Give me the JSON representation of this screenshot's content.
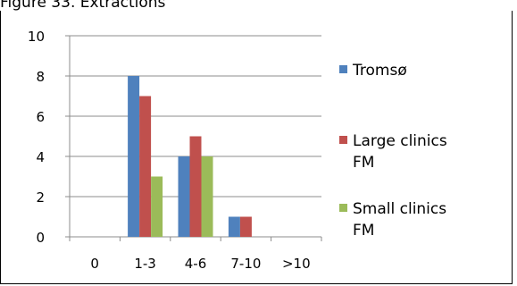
{
  "caption": "Figure 33. Extractions",
  "chart_data": {
    "type": "bar",
    "categories": [
      "0",
      "1-3",
      "4-6",
      "7-10",
      ">10"
    ],
    "series": [
      {
        "name": "Tromsø",
        "values": [
          0,
          8,
          4,
          1,
          0
        ],
        "color": "#4f81bd"
      },
      {
        "name": "Large clinics FM",
        "values": [
          0,
          7,
          5,
          1,
          0
        ],
        "color": "#c0504d"
      },
      {
        "name": "Small clinics FM",
        "values": [
          0,
          3,
          4,
          0,
          0
        ],
        "color": "#9bbb59"
      }
    ],
    "ylim": [
      0,
      10
    ],
    "yticks": [
      0,
      2,
      4,
      6,
      8,
      10
    ],
    "grid": true,
    "legend": "right"
  }
}
